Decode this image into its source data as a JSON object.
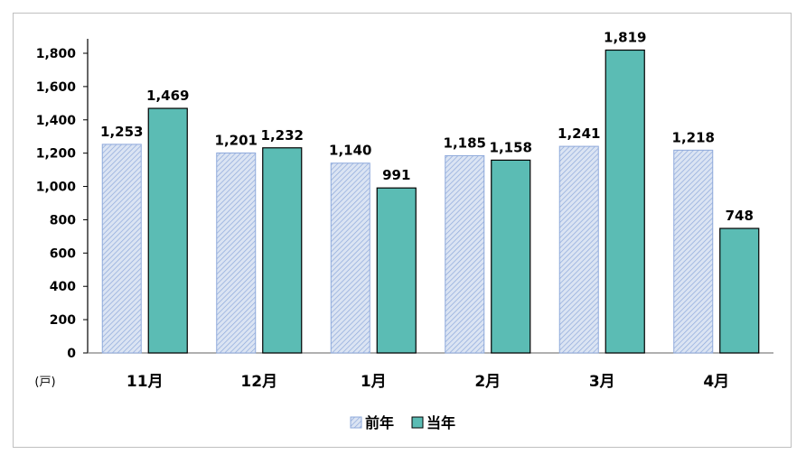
{
  "chart_data": {
    "type": "bar",
    "categories": [
      "11月",
      "12月",
      "1月",
      "2月",
      "3月",
      "4月"
    ],
    "series": [
      {
        "name": "前年",
        "values": [
          1253,
          1201,
          1140,
          1185,
          1241,
          1218
        ],
        "data_labels": [
          "1,253",
          "1,201",
          "1,140",
          "1,185",
          "1,241",
          "1,218"
        ],
        "color": "#dbe4f3",
        "pattern": "diagonal-hatch",
        "pattern_color": "#8ea9db"
      },
      {
        "name": "当年",
        "values": [
          1469,
          1232,
          991,
          1158,
          1819,
          748
        ],
        "data_labels": [
          "1,469",
          "1,232",
          "991",
          "1,158",
          "1,819",
          "748"
        ],
        "color": "#5bbcb4"
      }
    ],
    "unit_label": "(戸)",
    "ylim": [
      0,
      1800
    ],
    "yticks": [
      0,
      200,
      400,
      600,
      800,
      1000,
      1200,
      1400,
      1600,
      1800
    ],
    "ytick_labels": [
      "0",
      "200",
      "400",
      "600",
      "800",
      "1,000",
      "1,200",
      "1,400",
      "1,600",
      "1,800"
    ],
    "grid": false,
    "legend": "bottom-center"
  }
}
